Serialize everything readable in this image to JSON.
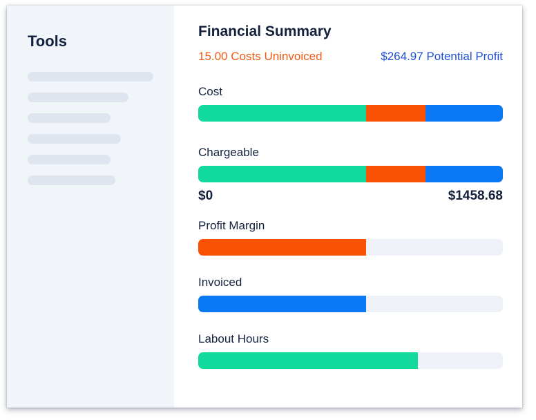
{
  "sidebar": {
    "title": "Tools",
    "placeholder_widths": [
      182,
      146,
      120,
      135,
      120,
      127
    ]
  },
  "main": {
    "title": "Financial Summary",
    "uninvoiced": "15.00 Costs Uninvoiced",
    "potential_profit": "$264.97 Potential Profit"
  },
  "colors": {
    "green": "#12d99c",
    "orange": "#fa5205",
    "blue": "#0b78f6",
    "track": "#eef2f8"
  },
  "metrics": [
    {
      "label": "Cost",
      "segments": [
        {
          "color": "green",
          "fraction": 0.552
        },
        {
          "color": "orange",
          "fraction": 0.195
        },
        {
          "color": "blue",
          "fraction": 0.253
        }
      ]
    },
    {
      "label": "Chargeable",
      "segments": [
        {
          "color": "green",
          "fraction": 0.552
        },
        {
          "color": "orange",
          "fraction": 0.195
        },
        {
          "color": "blue",
          "fraction": 0.253
        }
      ],
      "range_min": "$0",
      "range_max": "$1458.68"
    },
    {
      "label": "Profit Margin",
      "segments": [
        {
          "color": "orange",
          "fraction": 0.552
        }
      ]
    },
    {
      "label": "Invoiced",
      "segments": [
        {
          "color": "blue",
          "fraction": 0.552
        }
      ]
    },
    {
      "label": "Labout Hours",
      "segments": [
        {
          "color": "green",
          "fraction": 0.722
        }
      ]
    }
  ]
}
